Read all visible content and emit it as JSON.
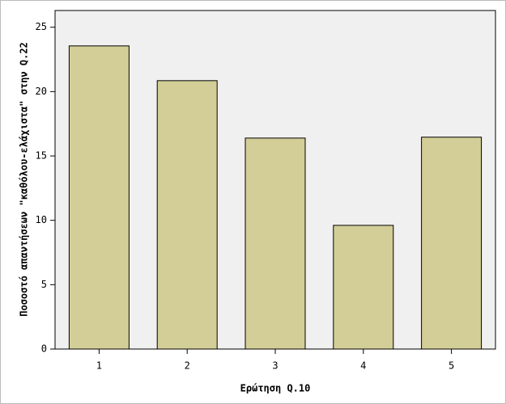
{
  "chart_data": {
    "type": "bar",
    "x_label": "Ερώτηση Q.10",
    "y_label": "Ποσοστό απαντήσεων \"καθόλου-ελάχιστα\" στην Q.22",
    "categories": [
      "1",
      "2",
      "3",
      "4",
      "5"
    ],
    "values": [
      23.55,
      20.85,
      16.39,
      9.61,
      16.46
    ],
    "color": "#d3ce97",
    "ylim": [
      0,
      26.3
    ],
    "yticks": [
      0,
      5,
      10,
      15,
      20,
      25
    ]
  }
}
